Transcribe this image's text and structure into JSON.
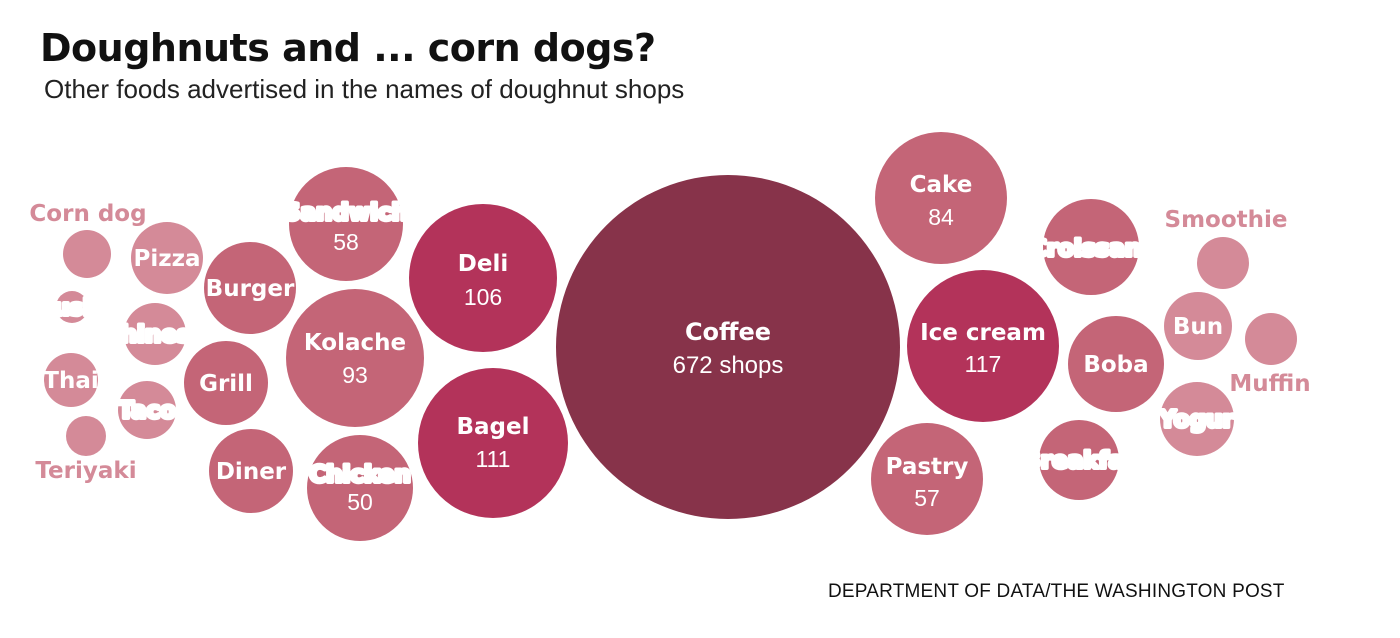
{
  "title": "Doughnuts and ... corn dogs?",
  "subtitle": "Other foods advertised in the names of doughnut shops",
  "credit": "DEPARTMENT OF DATA/THE WASHINGTON POST",
  "colors": {
    "coffee": "#87334a",
    "large": "#b3335a",
    "medium": "#c46577",
    "small": "#d48a98",
    "label_on_bubble": "#ffffff",
    "outside_label": "#d48a98"
  },
  "chart_data": {
    "type": "bubble",
    "title": "Doughnuts and ... corn dogs?",
    "subtitle": "Other foods advertised in the names of doughnut shops",
    "unit": "shops",
    "items": [
      {
        "name": "Coffee",
        "value": 672,
        "value_label": "672 shops"
      },
      {
        "name": "Ice cream",
        "value": 117,
        "value_label": "117"
      },
      {
        "name": "Bagel",
        "value": 111,
        "value_label": "111"
      },
      {
        "name": "Deli",
        "value": 106,
        "value_label": "106"
      },
      {
        "name": "Kolache",
        "value": 93,
        "value_label": "93"
      },
      {
        "name": "Cake",
        "value": 84,
        "value_label": "84"
      },
      {
        "name": "Sandwich",
        "value": 58,
        "value_label": "58"
      },
      {
        "name": "Pastry",
        "value": 57,
        "value_label": "57"
      },
      {
        "name": "Chicken",
        "value": 50,
        "value_label": "50"
      },
      {
        "name": "Croissant"
      },
      {
        "name": "Boba"
      },
      {
        "name": "Burger"
      },
      {
        "name": "Grill"
      },
      {
        "name": "Diner"
      },
      {
        "name": "Breakfast"
      },
      {
        "name": "Yogurt"
      },
      {
        "name": "Bun"
      },
      {
        "name": "Pizza"
      },
      {
        "name": "Chinese"
      },
      {
        "name": "Taco"
      },
      {
        "name": "Thai"
      },
      {
        "name": "Smoothie"
      },
      {
        "name": "Muffin"
      },
      {
        "name": "Corn dog"
      },
      {
        "name": "Sushi"
      },
      {
        "name": "Teriyaki"
      }
    ]
  }
}
